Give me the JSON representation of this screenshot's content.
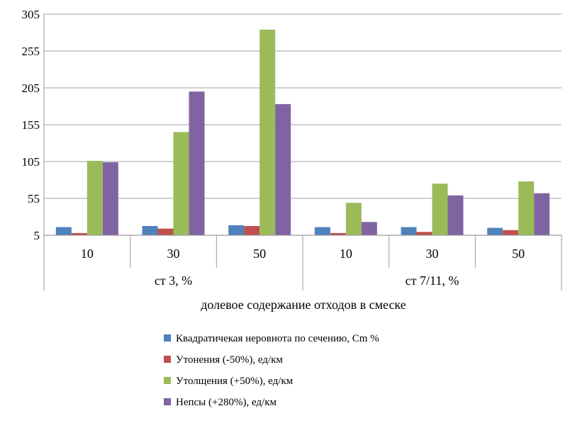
{
  "chart_data": {
    "type": "bar",
    "title": "",
    "xlabel": "долевое содержание отходов в смеске",
    "ylabel": "",
    "ylim": [
      5,
      305
    ],
    "yticks": [
      5,
      55,
      105,
      155,
      205,
      255,
      305
    ],
    "grid": true,
    "legend_position": "bottom",
    "categories": [
      "10",
      "30",
      "50",
      "10",
      "30",
      "50"
    ],
    "groups": [
      {
        "label": "ст 3, %",
        "span": 3
      },
      {
        "label": "ст 7/11, %",
        "span": 3
      }
    ],
    "series": [
      {
        "name": "Квадратичекая неровнота по сечению, Cm %",
        "color": "#4F81BD",
        "values": [
          16,
          17.5,
          18.5,
          16,
          16,
          15
        ]
      },
      {
        "name": "Утонения (-50%), ед/км",
        "color": "#C0504D",
        "values": [
          8,
          14,
          17.5,
          8,
          9.5,
          12
        ]
      },
      {
        "name": "Утолщения (+50%), ед/км",
        "color": "#9BBB59",
        "values": [
          106,
          145,
          284,
          49,
          75,
          78
        ]
      },
      {
        "name": "Непсы (+280%), ед/км",
        "color": "#8064A2",
        "values": [
          104,
          200,
          183,
          23,
          59,
          62
        ]
      }
    ]
  }
}
